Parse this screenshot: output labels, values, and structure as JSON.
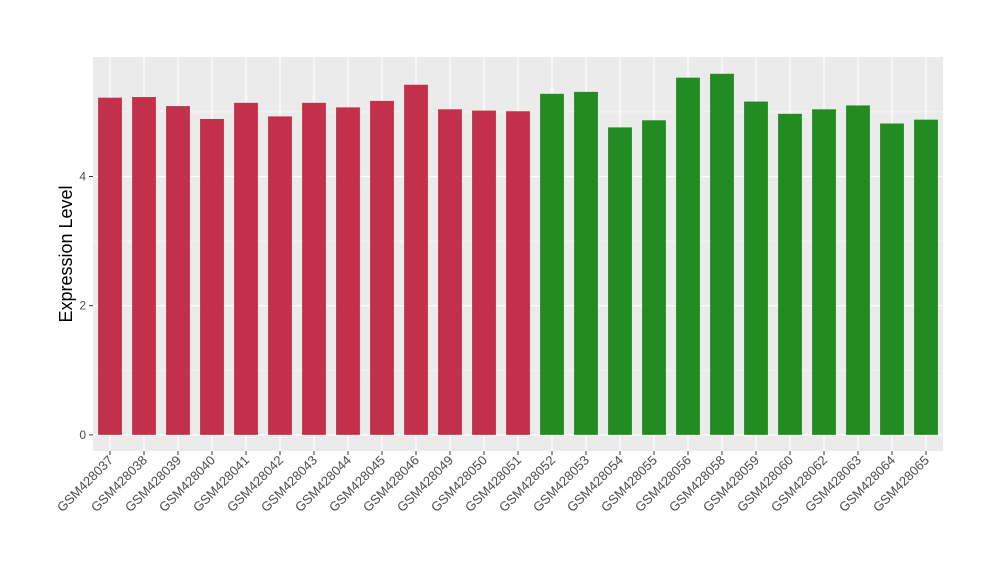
{
  "chart_data": {
    "type": "bar",
    "ylabel": "Expression Level",
    "xlabel": "",
    "ylim": [
      -0.25,
      5.85
    ],
    "yticks": [
      0,
      2,
      4
    ],
    "grid": true,
    "colors": {
      "panel_background": "#EBEBEB",
      "grid_major": "#FFFFFF",
      "axis_text": "#4D4D4D",
      "tick_color": "#333333"
    },
    "categories": [
      "GSM428037",
      "GSM428038",
      "GSM428039",
      "GSM428040",
      "GSM428041",
      "GSM428042",
      "GSM428043",
      "GSM428044",
      "GSM428045",
      "GSM428046",
      "GSM428049",
      "GSM428050",
      "GSM428051",
      "GSM428052",
      "GSM428053",
      "GSM428054",
      "GSM428055",
      "GSM428056",
      "GSM428058",
      "GSM428059",
      "GSM428060",
      "GSM428062",
      "GSM428063",
      "GSM428064",
      "GSM428065"
    ],
    "values": [
      5.22,
      5.23,
      5.09,
      4.89,
      5.14,
      4.93,
      5.14,
      5.07,
      5.17,
      5.42,
      5.04,
      5.02,
      5.01,
      5.28,
      5.31,
      4.76,
      4.87,
      5.53,
      5.59,
      5.16,
      4.97,
      5.04,
      5.1,
      4.82,
      4.88
    ],
    "bar_colors": [
      "#C3304A",
      "#C3304A",
      "#C3304A",
      "#C3304A",
      "#C3304A",
      "#C3304A",
      "#C3304A",
      "#C3304A",
      "#C3304A",
      "#C3304A",
      "#C3304A",
      "#C3304A",
      "#C3304A",
      "#228B22",
      "#228B22",
      "#228B22",
      "#228B22",
      "#228B22",
      "#228B22",
      "#228B22",
      "#228B22",
      "#228B22",
      "#228B22",
      "#228B22",
      "#228B22"
    ]
  }
}
